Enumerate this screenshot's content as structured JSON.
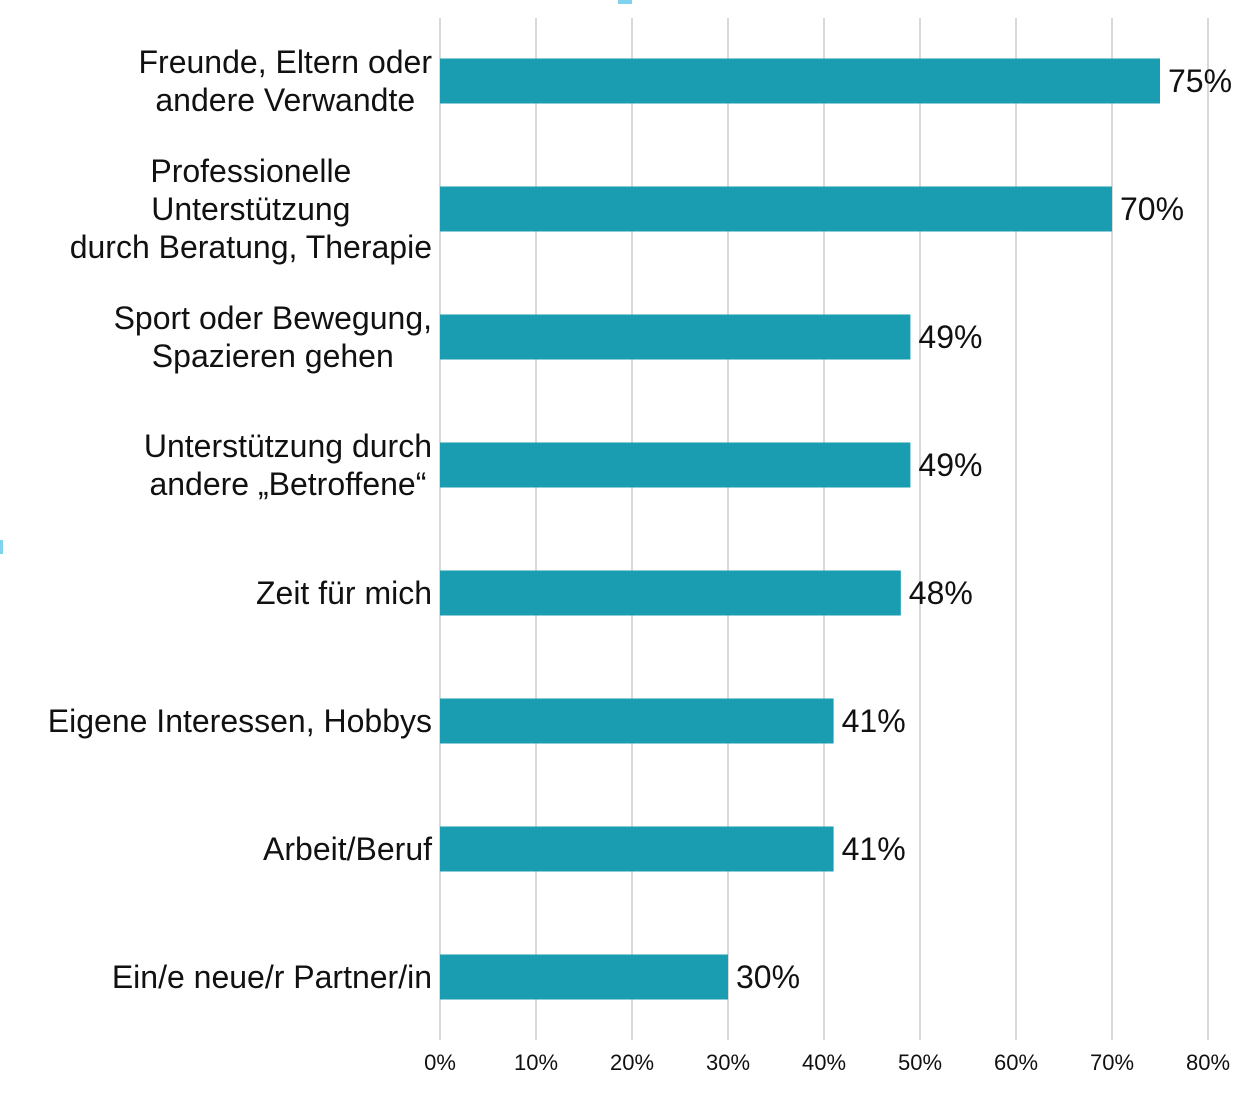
{
  "chart_data": {
    "type": "bar",
    "orientation": "horizontal",
    "title": "",
    "xlabel": "",
    "ylabel": "",
    "categories": [
      [
        "Freunde, Eltern oder",
        "andere Verwandte"
      ],
      [
        "Professionelle",
        "Unterstützung",
        "durch Beratung, Therapie"
      ],
      [
        "Sport oder Bewegung,",
        "Spazieren gehen"
      ],
      [
        "Unterstützung durch",
        "andere „Betroffene“"
      ],
      [
        "Zeit für mich"
      ],
      [
        "Eigene Interessen, Hobbys"
      ],
      [
        "Arbeit/Beruf"
      ],
      [
        "Ein/e neue/r Partner/in"
      ]
    ],
    "values": [
      75,
      70,
      49,
      49,
      48,
      41,
      41,
      30
    ],
    "value_labels": [
      "75%",
      "70%",
      "49%",
      "49%",
      "48%",
      "41%",
      "41%",
      "30%"
    ],
    "xlim": [
      0,
      80
    ],
    "xticks": [
      0,
      10,
      20,
      30,
      40,
      50,
      60,
      70,
      80
    ],
    "xtick_labels": [
      "0%",
      "10%",
      "20%",
      "30%",
      "40%",
      "50%",
      "60%",
      "70%",
      "80%"
    ],
    "grid": "vertical",
    "legend": "none",
    "bar_color": "#1a9db0",
    "grid_color": "#d9d9d9"
  }
}
